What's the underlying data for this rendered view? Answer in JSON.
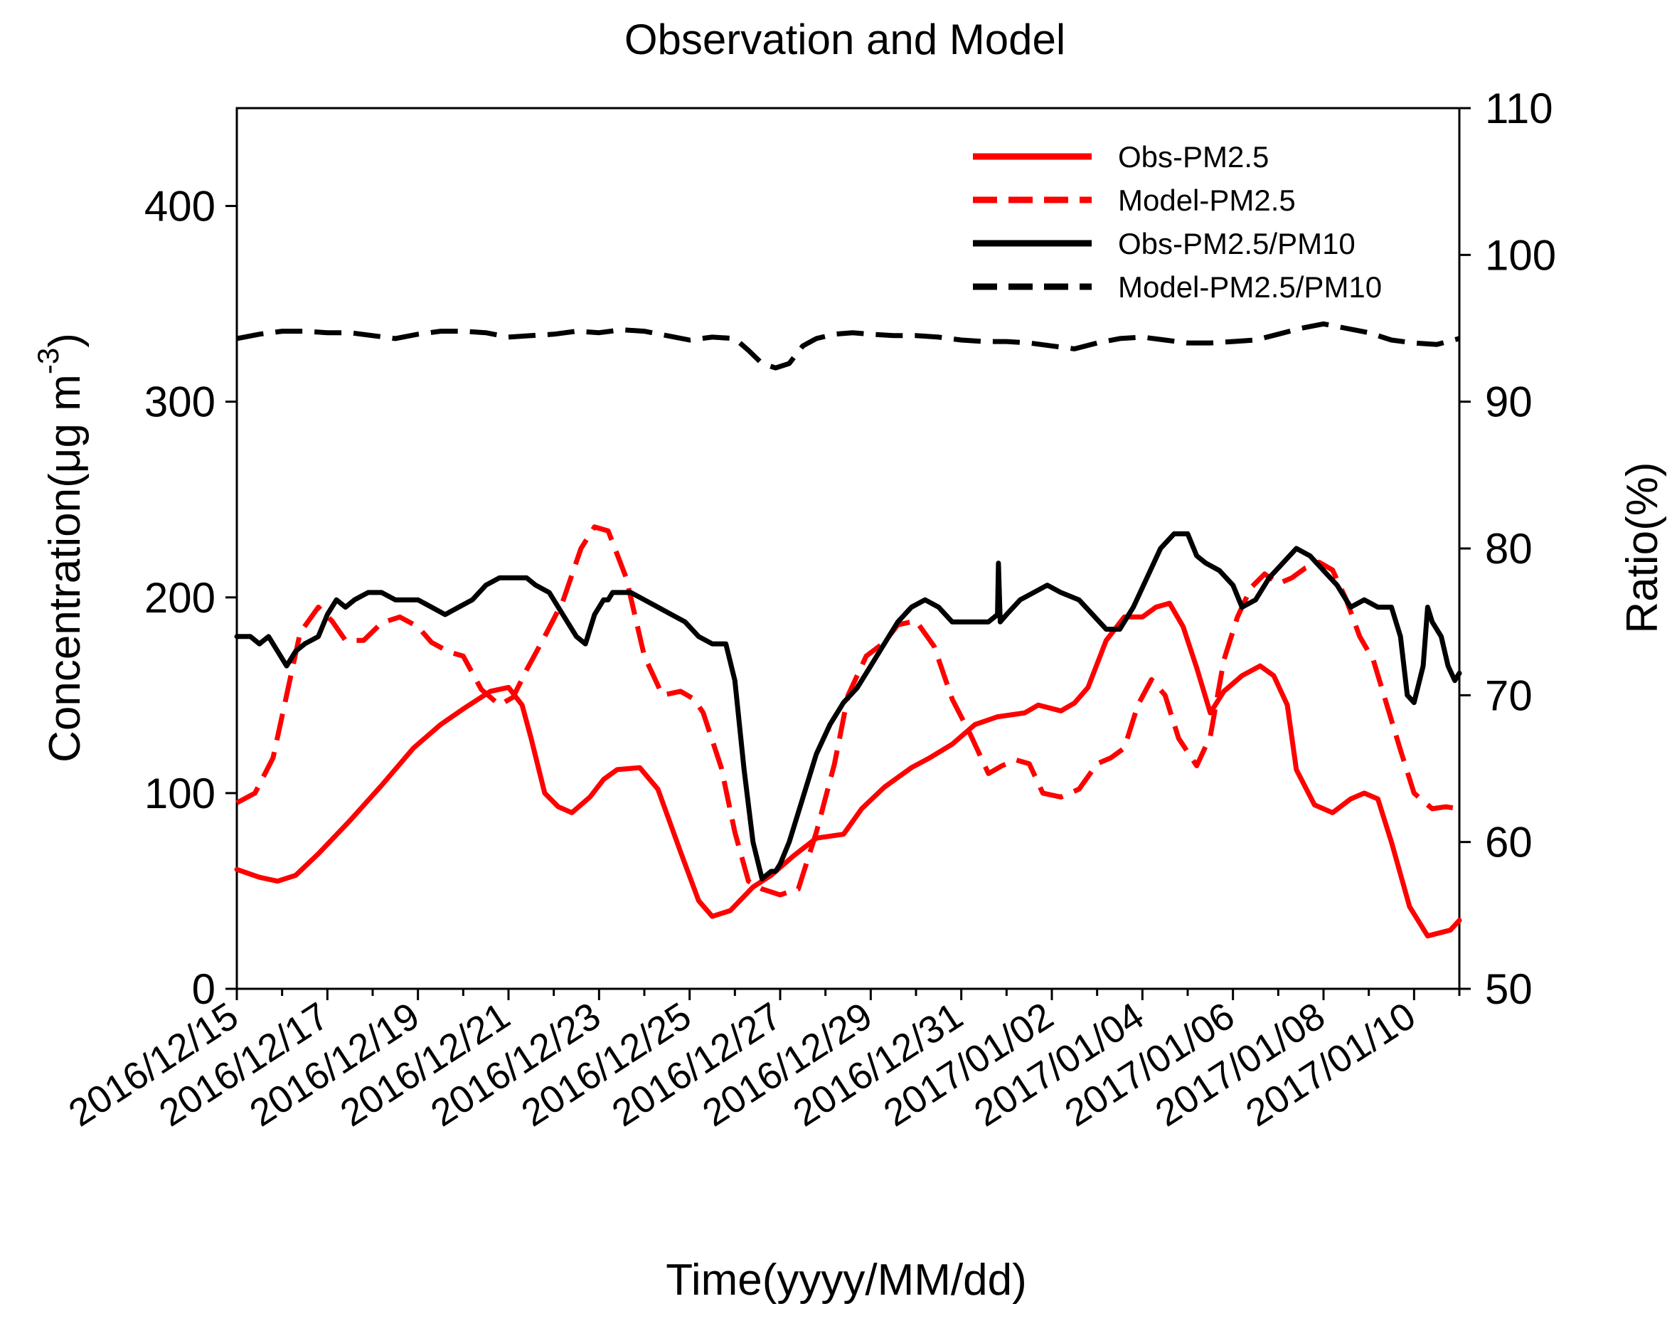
{
  "chart_data": {
    "type": "line",
    "title": "Observation and Model",
    "xlabel": "Time(yyyy/MM/dd)",
    "ylabel_left_text": "Concentration(μg m",
    "ylabel_left_superscript": "-3",
    "ylabel_left_close": ")",
    "ylabel_right": "Ratio(%)",
    "x_range_days": [
      0,
      27
    ],
    "ylim_left": [
      0,
      450
    ],
    "ylim_right": [
      50,
      110
    ],
    "y_ticks_left": [
      "0",
      "100",
      "200",
      "300",
      "400"
    ],
    "y_ticks_left_values": [
      0,
      100,
      200,
      300,
      400
    ],
    "y_ticks_right": [
      "50",
      "60",
      "70",
      "80",
      "90",
      "100",
      "110"
    ],
    "y_ticks_right_values": [
      50,
      60,
      70,
      80,
      90,
      100,
      110
    ],
    "x_tick_labels": [
      "2016/12/15",
      "2016/12/17",
      "2016/12/19",
      "2016/12/21",
      "2016/12/23",
      "2016/12/25",
      "2016/12/27",
      "2016/12/29",
      "2016/12/31",
      "2017/01/02",
      "2017/01/04",
      "2017/01/06",
      "2017/01/08",
      "2017/01/10"
    ],
    "x_tick_days": [
      0,
      2,
      4,
      6,
      8,
      10,
      12,
      14,
      16,
      18,
      20,
      22,
      24,
      26
    ],
    "series": [
      {
        "name": "Obs-PM2.5",
        "axis": "left",
        "color": "#ff0000",
        "dashed": false,
        "x_days": [
          0,
          0.5,
          0.9,
          1.3,
          1.8,
          2.5,
          3.2,
          3.9,
          4.5,
          5.0,
          5.6,
          6.0,
          6.3,
          6.5,
          6.8,
          7.1,
          7.4,
          7.8,
          8.1,
          8.4,
          8.9,
          9.3,
          9.8,
          10.2,
          10.5,
          10.9,
          11.4,
          11.8,
          12.3,
          12.8,
          13.4,
          13.8,
          14.3,
          14.9,
          15.3,
          15.8,
          16.3,
          16.8,
          17.4,
          17.7,
          18.2,
          18.5,
          18.8,
          19.2,
          19.6,
          20.0,
          20.3,
          20.6,
          20.9,
          21.2,
          21.5,
          21.8,
          22.2,
          22.6,
          22.9,
          23.2,
          23.4,
          23.8,
          24.2,
          24.6,
          24.9,
          25.2,
          25.5,
          25.9,
          26.3,
          26.8,
          27.0
        ],
        "values": [
          61,
          57,
          55,
          58,
          69,
          86,
          104,
          123,
          135,
          143,
          152,
          154,
          145,
          128,
          100,
          93,
          90,
          98,
          107,
          112,
          113,
          102,
          70,
          45,
          37,
          40,
          52,
          58,
          68,
          77,
          79,
          92,
          103,
          113,
          118,
          125,
          135,
          139,
          141,
          145,
          142,
          146,
          154,
          178,
          190,
          190,
          195,
          197,
          185,
          164,
          141,
          152,
          160,
          165,
          160,
          145,
          112,
          94,
          90,
          97,
          100,
          97,
          75,
          42,
          27,
          30,
          35
        ]
      },
      {
        "name": "Model-PM2.5",
        "axis": "left",
        "color": "#ff0000",
        "dashed": true,
        "x_days": [
          0,
          0.4,
          0.8,
          1.1,
          1.4,
          1.8,
          2.1,
          2.4,
          2.8,
          3.2,
          3.6,
          4.0,
          4.3,
          4.7,
          5.0,
          5.4,
          5.8,
          6.1,
          6.4,
          6.8,
          7.2,
          7.6,
          7.9,
          8.2,
          8.6,
          9.0,
          9.4,
          9.8,
          10.1,
          10.3,
          10.7,
          11.0,
          11.3,
          11.6,
          12.0,
          12.4,
          12.8,
          13.2,
          13.5,
          13.9,
          14.3,
          14.6,
          15.0,
          15.4,
          15.8,
          16.2,
          16.6,
          16.9,
          17.2,
          17.5,
          17.8,
          18.2,
          18.6,
          19.0,
          19.3,
          19.6,
          19.9,
          20.2,
          20.5,
          20.8,
          21.2,
          21.5,
          21.8,
          22.1,
          22.4,
          22.7,
          23.0,
          23.3,
          23.6,
          23.9,
          24.2,
          24.5,
          24.8,
          25.1,
          25.4,
          25.7,
          26.0,
          26.4,
          26.7,
          27.0
        ],
        "values": [
          95,
          100,
          118,
          150,
          182,
          195,
          188,
          178,
          178,
          187,
          190,
          185,
          177,
          172,
          170,
          153,
          145,
          149,
          163,
          180,
          198,
          225,
          236,
          234,
          210,
          170,
          150,
          152,
          148,
          141,
          113,
          80,
          55,
          51,
          48,
          51,
          80,
          115,
          150,
          170,
          177,
          186,
          188,
          175,
          148,
          130,
          110,
          114,
          117,
          115,
          100,
          98,
          102,
          115,
          118,
          123,
          145,
          158,
          150,
          128,
          114,
          129,
          168,
          190,
          205,
          212,
          207,
          210,
          215,
          218,
          214,
          199,
          180,
          168,
          145,
          122,
          100,
          92,
          93,
          92
        ]
      },
      {
        "name": "Obs-PM2.5/PM10",
        "axis": "right",
        "color": "#000000",
        "dashed": false,
        "x_days": [
          0,
          0.3,
          0.5,
          0.7,
          1.0,
          1.1,
          1.3,
          1.5,
          1.8,
          2.0,
          2.2,
          2.4,
          2.6,
          2.9,
          3.2,
          3.5,
          3.7,
          4.0,
          4.3,
          4.6,
          4.9,
          5.2,
          5.5,
          5.8,
          6.1,
          6.4,
          6.6,
          6.9,
          7.2,
          7.5,
          7.7,
          7.9,
          8.1,
          8.2,
          8.3,
          8.5,
          8.7,
          9.0,
          9.3,
          9.6,
          9.9,
          10.2,
          10.5,
          10.8,
          11.0,
          11.2,
          11.4,
          11.6,
          11.8,
          11.9,
          12.0,
          12.2,
          12.5,
          12.8,
          13.1,
          13.4,
          13.7,
          14.0,
          14.3,
          14.6,
          14.9,
          15.2,
          15.5,
          15.8,
          16.1,
          16.4,
          16.6,
          16.8,
          16.82,
          16.86,
          17.0,
          17.3,
          17.6,
          17.9,
          18.2,
          18.6,
          18.9,
          19.2,
          19.5,
          19.8,
          20.1,
          20.4,
          20.7,
          21.0,
          21.2,
          21.4,
          21.7,
          22.0,
          22.2,
          22.5,
          22.8,
          23.1,
          23.4,
          23.7,
          24.0,
          24.3,
          24.6,
          24.9,
          25.2,
          25.5,
          25.7,
          25.85,
          26.0,
          26.2,
          26.3,
          26.4,
          26.6,
          26.75,
          26.9,
          27.0
        ],
        "values": [
          74,
          74,
          73.5,
          74,
          72.5,
          72,
          73,
          73.5,
          74,
          75.5,
          76.5,
          76,
          76.5,
          77,
          77,
          76.5,
          76.5,
          76.5,
          76,
          75.5,
          76,
          76.5,
          77.5,
          78,
          78,
          78,
          77.5,
          77,
          75.5,
          74,
          73.5,
          75.5,
          76.5,
          76.5,
          77,
          77,
          77,
          76.5,
          76,
          75.5,
          75,
          74,
          73.5,
          73.5,
          71,
          65,
          60,
          57.5,
          58,
          58,
          58.5,
          60,
          63,
          66,
          68,
          69.5,
          70.5,
          72,
          73.5,
          75,
          76,
          76.5,
          76,
          75,
          75,
          75,
          75,
          75.5,
          79,
          75,
          75.5,
          76.5,
          77,
          77.5,
          77,
          76.5,
          75.5,
          74.5,
          74.5,
          76,
          78,
          80,
          81,
          81,
          79.5,
          79,
          78.5,
          77.5,
          76,
          76.5,
          78,
          79,
          80,
          79.5,
          78.5,
          77.5,
          76,
          76.5,
          76,
          76,
          74,
          70,
          69.5,
          72,
          76,
          75,
          74,
          72,
          71,
          71.5
        ]
      },
      {
        "name": "Model-PM2.5/PM10",
        "axis": "right",
        "color": "#000000",
        "dashed": true,
        "x_days": [
          0,
          0.5,
          1.0,
          1.5,
          2.0,
          2.5,
          3.0,
          3.5,
          4.0,
          4.5,
          5.0,
          5.5,
          6.0,
          6.5,
          7.0,
          7.5,
          8.0,
          8.5,
          9.0,
          9.5,
          10.0,
          10.5,
          11.0,
          11.3,
          11.6,
          11.9,
          12.2,
          12.5,
          12.8,
          13.2,
          13.6,
          14.0,
          14.5,
          15.0,
          15.5,
          16.0,
          16.5,
          17.0,
          17.5,
          18.0,
          18.5,
          19.0,
          19.5,
          20.0,
          20.5,
          21.0,
          21.5,
          22.0,
          22.5,
          23.0,
          23.5,
          24.0,
          24.5,
          25.0,
          25.5,
          26.0,
          26.5,
          27.0
        ],
        "values": [
          94.3,
          94.6,
          94.8,
          94.8,
          94.7,
          94.7,
          94.5,
          94.3,
          94.6,
          94.8,
          94.8,
          94.7,
          94.4,
          94.5,
          94.6,
          94.8,
          94.7,
          94.9,
          94.8,
          94.5,
          94.2,
          94.4,
          94.3,
          93.5,
          92.6,
          92.3,
          92.6,
          93.8,
          94.3,
          94.6,
          94.7,
          94.6,
          94.5,
          94.5,
          94.4,
          94.2,
          94.1,
          94.1,
          94.0,
          93.8,
          93.6,
          94.0,
          94.3,
          94.4,
          94.2,
          94.0,
          94.0,
          94.1,
          94.2,
          94.6,
          95.0,
          95.3,
          95.0,
          94.7,
          94.2,
          94.0,
          93.9,
          94.3
        ]
      }
    ],
    "legend": {
      "placement": "top-right",
      "entries": [
        "Obs-PM2.5",
        "Model-PM2.5",
        "Obs-PM2.5/PM10",
        "Model-PM2.5/PM10"
      ]
    }
  }
}
